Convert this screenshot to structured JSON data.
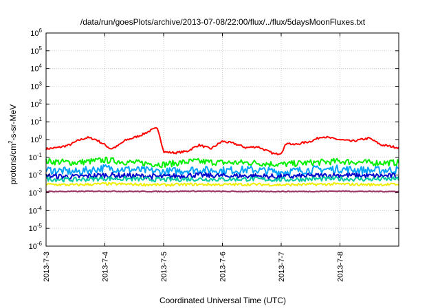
{
  "chart_data": {
    "type": "line",
    "title": "/data/run/goesPlots/archive/2013-07-08/22:00/flux/../flux/5daysMoonFluxes.txt",
    "xlabel": "Coordinated Universal Time (UTC)",
    "ylabel": {
      "prefix": "protons/cm",
      "sup": "2",
      "suffix": "-s-sr-MeV"
    },
    "y_scale": "log",
    "ylim": [
      1e-06,
      1000000.0
    ],
    "y_ticks": [
      {
        "value": 1e-06,
        "base": "10",
        "exp": "-6"
      },
      {
        "value": 1e-05,
        "base": "10",
        "exp": "-5"
      },
      {
        "value": 0.0001,
        "base": "10",
        "exp": "-4"
      },
      {
        "value": 0.001,
        "base": "10",
        "exp": "-3"
      },
      {
        "value": 0.01,
        "base": "10",
        "exp": "-2"
      },
      {
        "value": 0.1,
        "base": "10",
        "exp": "-1"
      },
      {
        "value": 1,
        "base": "10",
        "exp": "0"
      },
      {
        "value": 10,
        "base": "10",
        "exp": "1"
      },
      {
        "value": 100,
        "base": "10",
        "exp": "2"
      },
      {
        "value": 1000.0,
        "base": "10",
        "exp": "3"
      },
      {
        "value": 10000.0,
        "base": "10",
        "exp": "4"
      },
      {
        "value": 100000.0,
        "base": "10",
        "exp": "5"
      },
      {
        "value": 1000000.0,
        "base": "10",
        "exp": "6"
      }
    ],
    "x_ticks": [
      "2013-7-3",
      "2013-7-4",
      "2013-7-5",
      "2013-7-6",
      "2013-7-7",
      "2013-7-8"
    ],
    "xlim_days": [
      0,
      6
    ],
    "grid": true,
    "series": [
      {
        "color": "#ff0000",
        "width": 2,
        "x": [
          0,
          0.2,
          0.4,
          0.55,
          0.7,
          0.85,
          1.0,
          1.1,
          1.2,
          1.35,
          1.5,
          1.65,
          1.8,
          1.9,
          1.95,
          2.0,
          2.2,
          2.4,
          2.6,
          2.8,
          3.0,
          3.2,
          3.4,
          3.6,
          3.8,
          3.9,
          4.0,
          4.1,
          4.2,
          4.5,
          4.7,
          4.9,
          5.2,
          5.5,
          5.7,
          6.0
        ],
        "y": [
          0.3,
          0.35,
          0.5,
          0.9,
          1.3,
          1.0,
          0.5,
          0.3,
          0.4,
          0.9,
          1.3,
          2.0,
          3.5,
          4.5,
          1.0,
          0.2,
          0.18,
          0.22,
          0.5,
          0.3,
          0.8,
          0.6,
          0.35,
          0.4,
          0.2,
          0.15,
          0.18,
          0.7,
          0.5,
          0.8,
          1.5,
          1.1,
          0.8,
          1.2,
          0.5,
          0.35
        ]
      },
      {
        "color": "#00ee00",
        "width": 2,
        "x": [
          0,
          0.5,
          1.0,
          1.5,
          2.0,
          2.5,
          3.0,
          3.5,
          4.0,
          4.5,
          5.0,
          5.5,
          6.0
        ],
        "y": [
          0.06,
          0.05,
          0.07,
          0.05,
          0.04,
          0.06,
          0.05,
          0.05,
          0.04,
          0.05,
          0.06,
          0.05,
          0.05
        ]
      },
      {
        "color": "#00a0ff",
        "width": 2,
        "x": [
          0,
          0.5,
          1.0,
          1.5,
          2.0,
          2.5,
          3.0,
          3.5,
          4.0,
          4.5,
          5.0,
          5.5,
          6.0
        ],
        "y": [
          0.02,
          0.015,
          0.025,
          0.02,
          0.015,
          0.02,
          0.018,
          0.02,
          0.015,
          0.02,
          0.022,
          0.018,
          0.02
        ]
      },
      {
        "color": "#0000cc",
        "width": 2,
        "x": [
          0,
          0.5,
          1.0,
          1.5,
          2.0,
          2.5,
          3.0,
          3.5,
          4.0,
          4.5,
          5.0,
          5.5,
          6.0
        ],
        "y": [
          0.009,
          0.008,
          0.01,
          0.009,
          0.008,
          0.01,
          0.009,
          0.009,
          0.008,
          0.009,
          0.01,
          0.009,
          0.009
        ]
      },
      {
        "color": "#00c8a0",
        "width": 2,
        "x": [
          0,
          0.5,
          1.0,
          1.5,
          2.0,
          2.5,
          3.0,
          3.5,
          4.0,
          4.5,
          5.0,
          5.5,
          6.0
        ],
        "y": [
          0.006,
          0.0055,
          0.0065,
          0.006,
          0.0055,
          0.006,
          0.0058,
          0.006,
          0.0055,
          0.006,
          0.0062,
          0.0058,
          0.006
        ]
      },
      {
        "color": "#eeee00",
        "width": 2,
        "x": [
          0,
          0.5,
          1.0,
          1.5,
          2.0,
          2.5,
          3.0,
          3.5,
          4.0,
          4.5,
          5.0,
          5.5,
          6.0
        ],
        "y": [
          0.003,
          0.0028,
          0.0032,
          0.003,
          0.0028,
          0.003,
          0.0029,
          0.003,
          0.0028,
          0.003,
          0.0031,
          0.0029,
          0.003
        ]
      },
      {
        "color": "#993366",
        "width": 2,
        "x": [
          0,
          0.5,
          1.0,
          1.5,
          2.0,
          2.5,
          3.0,
          3.5,
          4.0,
          4.5,
          5.0,
          5.5,
          6.0
        ],
        "y": [
          0.0012,
          0.0012,
          0.00125,
          0.0012,
          0.0012,
          0.00125,
          0.0012,
          0.0012,
          0.0012,
          0.0012,
          0.00125,
          0.0012,
          0.0012
        ]
      }
    ]
  }
}
